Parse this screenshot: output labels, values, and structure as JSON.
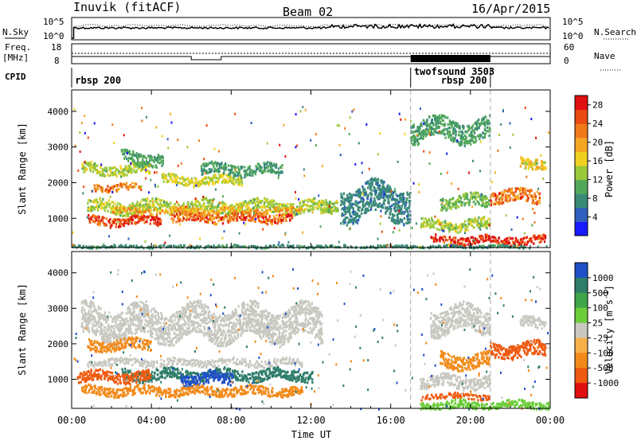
{
  "header": {
    "station": "Inuvik (fitACF)",
    "beam": "Beam 02",
    "date": "16/Apr/2015"
  },
  "aux": {
    "nsky_label": "N.Sky",
    "nsky_ticks": [
      "10^5",
      "10^0"
    ],
    "nsearch_label": "N.Search",
    "nsearch_ticks": [
      "10^5",
      "10^0"
    ],
    "freq_label_line1": "Freq.",
    "freq_label_line2": "[MHz]",
    "freq_ticks": [
      "18",
      "8"
    ],
    "nave_label": "Nave",
    "nave_ticks": [
      "60",
      "0"
    ],
    "cpid_label": "CPID",
    "cpid_entries": [
      {
        "text": "rbsp 200",
        "time_hr": 0.05,
        "row": 2
      },
      {
        "text": "twofsound 3503",
        "time_hr": 17.05,
        "row": 1
      },
      {
        "text": "rbsp 200",
        "time_hr": 18.4,
        "row": 2
      }
    ],
    "cpid_boundaries_hr": [
      17.0,
      21.0
    ]
  },
  "xaxis": {
    "label": "Time UT",
    "ticks": [
      "00:00",
      "04:00",
      "08:00",
      "12:00",
      "16:00",
      "20:00",
      "00:00"
    ]
  },
  "chart_data": [
    {
      "type": "heatmap",
      "panel": "power",
      "xlabel": "Time UT",
      "ylabel": "Slant Range [km]",
      "xlim_hours": [
        0,
        24
      ],
      "ylim_km": [
        180,
        4600
      ],
      "yticks": [
        "1000",
        "2000",
        "3000",
        "4000"
      ],
      "colorbar": {
        "label": "Power [dB]",
        "ticks": [
          "4",
          "8",
          "12",
          "16",
          "20",
          "24",
          "28"
        ],
        "range": [
          0,
          30
        ],
        "colors": [
          "#1a1aff",
          "#2f60c0",
          "#3a8a78",
          "#52a85a",
          "#9ac93a",
          "#f0d020",
          "#f5a623",
          "#f07a1a",
          "#e84a10",
          "#e01010"
        ]
      },
      "bands": [
        {
          "t_start": 0.5,
          "t_end": 4.0,
          "r_center": 2400,
          "r_width": 300,
          "value": 14
        },
        {
          "t_start": 1.0,
          "t_end": 3.5,
          "r_center": 1900,
          "r_width": 200,
          "value": 22
        },
        {
          "t_start": 2.5,
          "t_end": 4.5,
          "r_center": 2700,
          "r_width": 350,
          "value": 10
        },
        {
          "t_start": 4.5,
          "t_end": 8.5,
          "r_center": 2100,
          "r_width": 250,
          "value": 15
        },
        {
          "t_start": 6.5,
          "t_end": 10.5,
          "r_center": 2400,
          "r_width": 300,
          "value": 9
        },
        {
          "t_start": 0.8,
          "t_end": 13.0,
          "r_center": 1350,
          "r_width": 350,
          "value": 14
        },
        {
          "t_start": 0.8,
          "t_end": 4.5,
          "r_center": 950,
          "r_width": 250,
          "value": 26
        },
        {
          "t_start": 5.0,
          "t_end": 11.0,
          "r_center": 1050,
          "r_width": 250,
          "value": 24
        },
        {
          "t_start": 2.0,
          "t_end": 11.5,
          "r_center": 1250,
          "r_width": 150,
          "value": 20
        },
        {
          "t_start": 12.5,
          "t_end": 13.3,
          "r_center": 1300,
          "r_width": 300,
          "value": 13
        },
        {
          "t_start": 18.0,
          "t_end": 23.8,
          "r_center": 420,
          "r_width": 220,
          "value": 28
        },
        {
          "t_start": 17.5,
          "t_end": 21.0,
          "r_center": 850,
          "r_width": 300,
          "value": 14
        },
        {
          "t_start": 18.5,
          "t_end": 21.0,
          "r_center": 1500,
          "r_width": 350,
          "value": 12
        },
        {
          "t_start": 21.0,
          "t_end": 23.5,
          "r_center": 1650,
          "r_width": 350,
          "value": 23
        },
        {
          "t_start": 22.5,
          "t_end": 23.8,
          "r_center": 2600,
          "r_width": 300,
          "value": 17
        },
        {
          "t_start": 0.0,
          "t_end": 23.0,
          "r_center": 240,
          "r_width": 70,
          "value": 8
        },
        {
          "t_start": 17.0,
          "t_end": 21.0,
          "r_center": 3500,
          "r_width": 600,
          "value": 10
        },
        {
          "t_start": 13.5,
          "t_end": 17.0,
          "r_center": 1500,
          "r_width": 900,
          "value": 7
        }
      ]
    },
    {
      "type": "heatmap",
      "panel": "velocity",
      "xlabel": "Time UT",
      "ylabel": "Slant Range [km]",
      "xlim_hours": [
        0,
        24
      ],
      "ylim_km": [
        180,
        4600
      ],
      "yticks": [
        "1000",
        "2000",
        "3000",
        "4000"
      ],
      "colorbar": {
        "label": "Velocity [m s^-1]",
        "ticks": [
          "1000",
          "500",
          "100",
          "25",
          "-25",
          "-100",
          "-500",
          "-1000"
        ],
        "bins": [
          {
            "value": 1000,
            "color": "#2050c8"
          },
          {
            "value": 500,
            "color": "#2e7d6a"
          },
          {
            "value": 100,
            "color": "#3ea54a"
          },
          {
            "value": 60,
            "color": "#6ccd3a"
          },
          {
            "value": 0,
            "color": "#c8c8c0"
          },
          {
            "value": -60,
            "color": "#f5b04a"
          },
          {
            "value": -100,
            "color": "#f28a1a"
          },
          {
            "value": -500,
            "color": "#ee5a10"
          },
          {
            "value": -1000,
            "color": "#e01010"
          }
        ]
      },
      "bands": [
        {
          "t_start": 0.5,
          "t_end": 12.5,
          "r_center": 2600,
          "r_width": 900,
          "value": 0
        },
        {
          "t_start": 0.8,
          "t_end": 4.0,
          "r_center": 2000,
          "r_width": 300,
          "value": -100
        },
        {
          "t_start": 0.8,
          "t_end": 11.5,
          "r_center": 1500,
          "r_width": 200,
          "value": 0
        },
        {
          "t_start": 2.5,
          "t_end": 12.0,
          "r_center": 1150,
          "r_width": 300,
          "value": 500
        },
        {
          "t_start": 5.5,
          "t_end": 8.0,
          "r_center": 1050,
          "r_width": 350,
          "value": 1000
        },
        {
          "t_start": 0.3,
          "t_end": 4.0,
          "r_center": 1100,
          "r_width": 300,
          "value": -500
        },
        {
          "t_start": 0.5,
          "t_end": 11.5,
          "r_center": 700,
          "r_width": 250,
          "value": -100
        },
        {
          "t_start": 17.5,
          "t_end": 24.0,
          "r_center": 300,
          "r_width": 220,
          "value": 60
        },
        {
          "t_start": 17.5,
          "t_end": 21.0,
          "r_center": 550,
          "r_width": 150,
          "value": -500
        },
        {
          "t_start": 17.5,
          "t_end": 21.0,
          "r_center": 950,
          "r_width": 350,
          "value": 0
        },
        {
          "t_start": 18.5,
          "t_end": 21.0,
          "r_center": 1550,
          "r_width": 400,
          "value": -100
        },
        {
          "t_start": 21.0,
          "t_end": 23.8,
          "r_center": 1850,
          "r_width": 400,
          "value": -500
        },
        {
          "t_start": 22.5,
          "t_end": 23.8,
          "r_center": 2600,
          "r_width": 300,
          "value": 0
        },
        {
          "t_start": 18.0,
          "t_end": 21.0,
          "r_center": 2700,
          "r_width": 700,
          "value": 0
        }
      ]
    }
  ]
}
